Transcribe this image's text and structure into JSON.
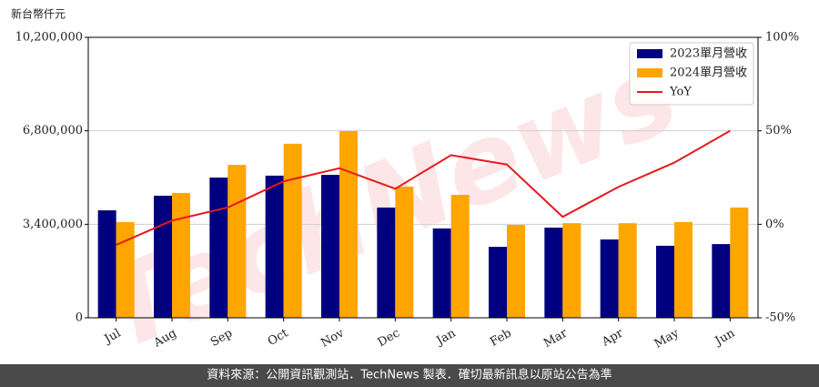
{
  "chart_data": {
    "type": "bar_line",
    "unit_label": "新台幣仟元",
    "watermark": "TechNews",
    "footer": "資料來源：公開資訊觀測站．TechNews 製表．確切最新訊息以原站公告為準",
    "categories": [
      "Jul",
      "Aug",
      "Sep",
      "Oct",
      "Nov",
      "Dec",
      "Jan",
      "Feb",
      "Mar",
      "Apr",
      "May",
      "Jun"
    ],
    "series": [
      {
        "name": "2023單月營收",
        "color": "#000080",
        "values": [
          3910000,
          4440000,
          5100000,
          5170000,
          5200000,
          4010000,
          3250000,
          2580000,
          3280000,
          2850000,
          2620000,
          2680000
        ]
      },
      {
        "name": "2024單月營收",
        "color": "#ffa500",
        "values": [
          3480000,
          4540000,
          5560000,
          6330000,
          6790000,
          4770000,
          4470000,
          3380000,
          3440000,
          3440000,
          3480000,
          4010000
        ]
      },
      {
        "name": "YoY",
        "color": "#e31a1c",
        "axis": "y2",
        "values": [
          -11,
          2,
          9,
          23,
          30,
          19,
          37,
          32,
          4,
          20,
          33,
          50
        ]
      }
    ],
    "ylim": [
      0,
      10200000
    ],
    "yticks": [
      0,
      {
        "value": 3400000,
        "label": "3,400,000"
      },
      {
        "value": 6800000,
        "label": "6,800,000"
      },
      {
        "value": 10200000,
        "label": "10,200,000"
      }
    ],
    "y2lim": [
      -50,
      100
    ],
    "y2ticks": [
      {
        "value": -50,
        "label": "-50%"
      },
      {
        "value": 0,
        "label": "0%"
      },
      {
        "value": 50,
        "label": "50%"
      },
      {
        "value": 100,
        "label": "100%"
      }
    ],
    "grid": true,
    "legend": "upper right"
  }
}
